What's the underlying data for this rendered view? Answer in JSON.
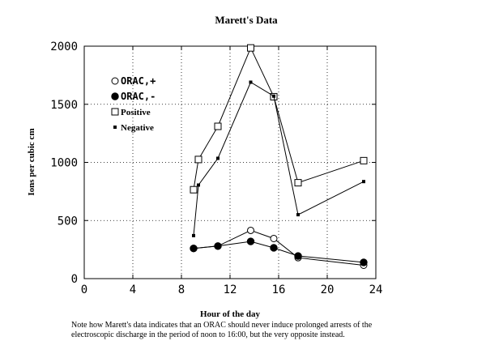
{
  "chart_data": {
    "type": "line",
    "title": "Marett's Data",
    "xlabel": "Hour of the day",
    "ylabel": "Ions per cubic cm",
    "xlim": [
      0,
      24
    ],
    "ylim": [
      0,
      2000
    ],
    "xticks": [
      0,
      4,
      8,
      12,
      16,
      20,
      24
    ],
    "yticks": [
      0,
      500,
      1000,
      1500,
      2000
    ],
    "grid": true,
    "legend_position": "top-left",
    "series": [
      {
        "name": "ORAC,+",
        "marker": "open-circle",
        "x": [
          9,
          11,
          13.7,
          15.6,
          17.6,
          23
        ],
        "y": [
          260,
          280,
          415,
          345,
          180,
          115
        ]
      },
      {
        "name": "ORAC,-",
        "marker": "filled-circle",
        "x": [
          9,
          11,
          13.7,
          15.6,
          17.6,
          23
        ],
        "y": [
          260,
          280,
          320,
          265,
          195,
          140
        ]
      },
      {
        "name": "Positive",
        "marker": "open-square",
        "x": [
          9,
          9.4,
          11,
          13.7,
          15.6,
          17.6,
          23
        ],
        "y": [
          765,
          1025,
          1310,
          1985,
          1565,
          825,
          1015
        ]
      },
      {
        "name": "Negative",
        "marker": "filled-square",
        "x": [
          9,
          9.4,
          11,
          13.7,
          15.6,
          17.6,
          23
        ],
        "y": [
          370,
          805,
          1035,
          1690,
          1570,
          550,
          835
        ]
      }
    ]
  },
  "note": "Note how Marett's data indicates that an ORAC should never induce prolonged arrests of the electroscopic discharge in the period of noon to 16:00, but the very opposite instead."
}
